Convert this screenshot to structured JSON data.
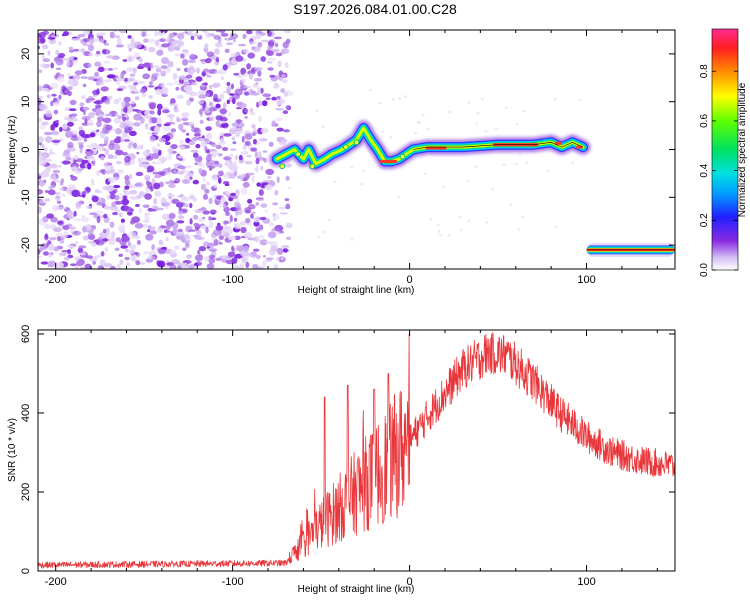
{
  "title": "S197.2026.084.01.00.C28",
  "chart_data": [
    {
      "type": "heatmap",
      "xlabel": "Height of straight line (km)",
      "ylabel": "Frequency (Hz)",
      "xlim": [
        -210,
        150
      ],
      "ylim": [
        -25,
        25
      ],
      "xticks": [
        -200,
        -100,
        0,
        100
      ],
      "yticks": [
        -20,
        -10,
        0,
        10,
        20
      ],
      "ridge": [
        [
          -75,
          -2
        ],
        [
          -70,
          -1
        ],
        [
          -65,
          0
        ],
        [
          -60,
          -2
        ],
        [
          -57,
          0
        ],
        [
          -53,
          -3
        ],
        [
          -48,
          -2
        ],
        [
          -44,
          -1
        ],
        [
          -38,
          0
        ],
        [
          -34,
          1
        ],
        [
          -30,
          2
        ],
        [
          -26,
          4.5
        ],
        [
          -22,
          2
        ],
        [
          -18,
          0
        ],
        [
          -14,
          -2.5
        ],
        [
          -10,
          -2.5
        ],
        [
          -6,
          -2
        ],
        [
          -2,
          -1
        ],
        [
          2,
          0
        ],
        [
          10,
          0.5
        ],
        [
          30,
          0.5
        ],
        [
          50,
          1
        ],
        [
          70,
          1
        ],
        [
          80,
          1.5
        ],
        [
          86,
          0.5
        ],
        [
          92,
          1.5
        ],
        [
          98,
          0.5
        ]
      ],
      "band": {
        "x_start": 100,
        "x_end": 150,
        "freq": -21
      },
      "colorbar": {
        "label": "Normalized spectral amplitude",
        "ticks": [
          "0.0",
          "0.2",
          "0.4",
          "0.6",
          "0.8"
        ],
        "tick_values": [
          0,
          0.2,
          0.4,
          0.6,
          0.8
        ],
        "max": 0.97
      }
    },
    {
      "type": "line",
      "xlabel": "Height of straight line (km)",
      "ylabel": "SNR (10 * v/v)",
      "xlim": [
        -210,
        150
      ],
      "ylim": [
        0,
        610
      ],
      "xticks": [
        -200,
        -100,
        0,
        100
      ],
      "yticks": [
        0,
        200,
        400,
        600
      ],
      "color": "#e8363a",
      "envelope": [
        [
          -210,
          15
        ],
        [
          -70,
          20
        ],
        [
          -62,
          60
        ],
        [
          -52,
          110
        ],
        [
          -42,
          150
        ],
        [
          -30,
          200
        ],
        [
          -15,
          260
        ],
        [
          0,
          330
        ],
        [
          15,
          420
        ],
        [
          30,
          510
        ],
        [
          45,
          555
        ],
        [
          55,
          545
        ],
        [
          70,
          480
        ],
        [
          85,
          400
        ],
        [
          100,
          340
        ],
        [
          115,
          300
        ],
        [
          130,
          280
        ],
        [
          150,
          265
        ]
      ],
      "spikes": [
        [
          -48,
          440
        ],
        [
          -35,
          470
        ],
        [
          -20,
          460
        ],
        [
          -12,
          500
        ]
      ]
    }
  ]
}
